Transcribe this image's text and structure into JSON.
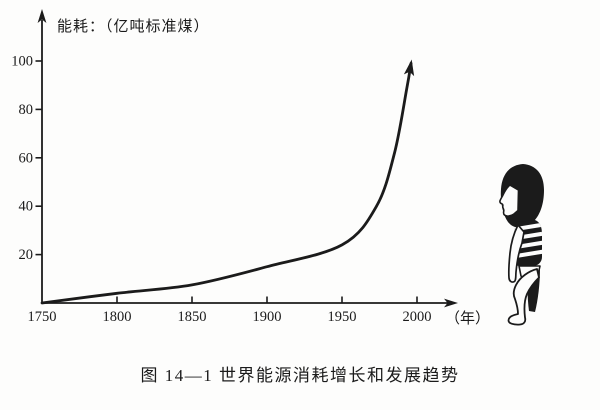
{
  "colors": {
    "ink": "#1b1b1b",
    "paper": "#fdfdfc"
  },
  "figure": {
    "y_axis_title": "能耗：（亿吨标准煤）",
    "x_axis_unit": "（年）",
    "caption": "图 14—1  世界能源消耗增长和发展趋势"
  },
  "icons": {
    "child_illustration": "child-looking-up-at-curve",
    "axis_arrows": "arrowheads on y-axis top, x-axis right end and curve end"
  },
  "chart_data": {
    "type": "line",
    "title": "图 14—1 世界能源消耗增长和发展趋势",
    "ylabel": "能耗（亿吨标准煤）",
    "xlabel": "年",
    "x_ticks": [
      1750,
      1800,
      1850,
      1900,
      1950,
      2000
    ],
    "y_ticks": [
      20,
      40,
      60,
      80,
      100
    ],
    "xlim": [
      1750,
      2028
    ],
    "ylim": [
      0,
      122
    ],
    "grid": false,
    "legend": false,
    "series": [
      {
        "name": "世界能源消耗",
        "x": [
          1750,
          1800,
          1850,
          1900,
          1950,
          1973,
          1985,
          1993,
          1996
        ],
        "values": [
          0,
          4,
          7.5,
          15,
          24,
          40,
          62,
          88,
          99
        ]
      }
    ],
    "curve_end_arrow": true
  }
}
